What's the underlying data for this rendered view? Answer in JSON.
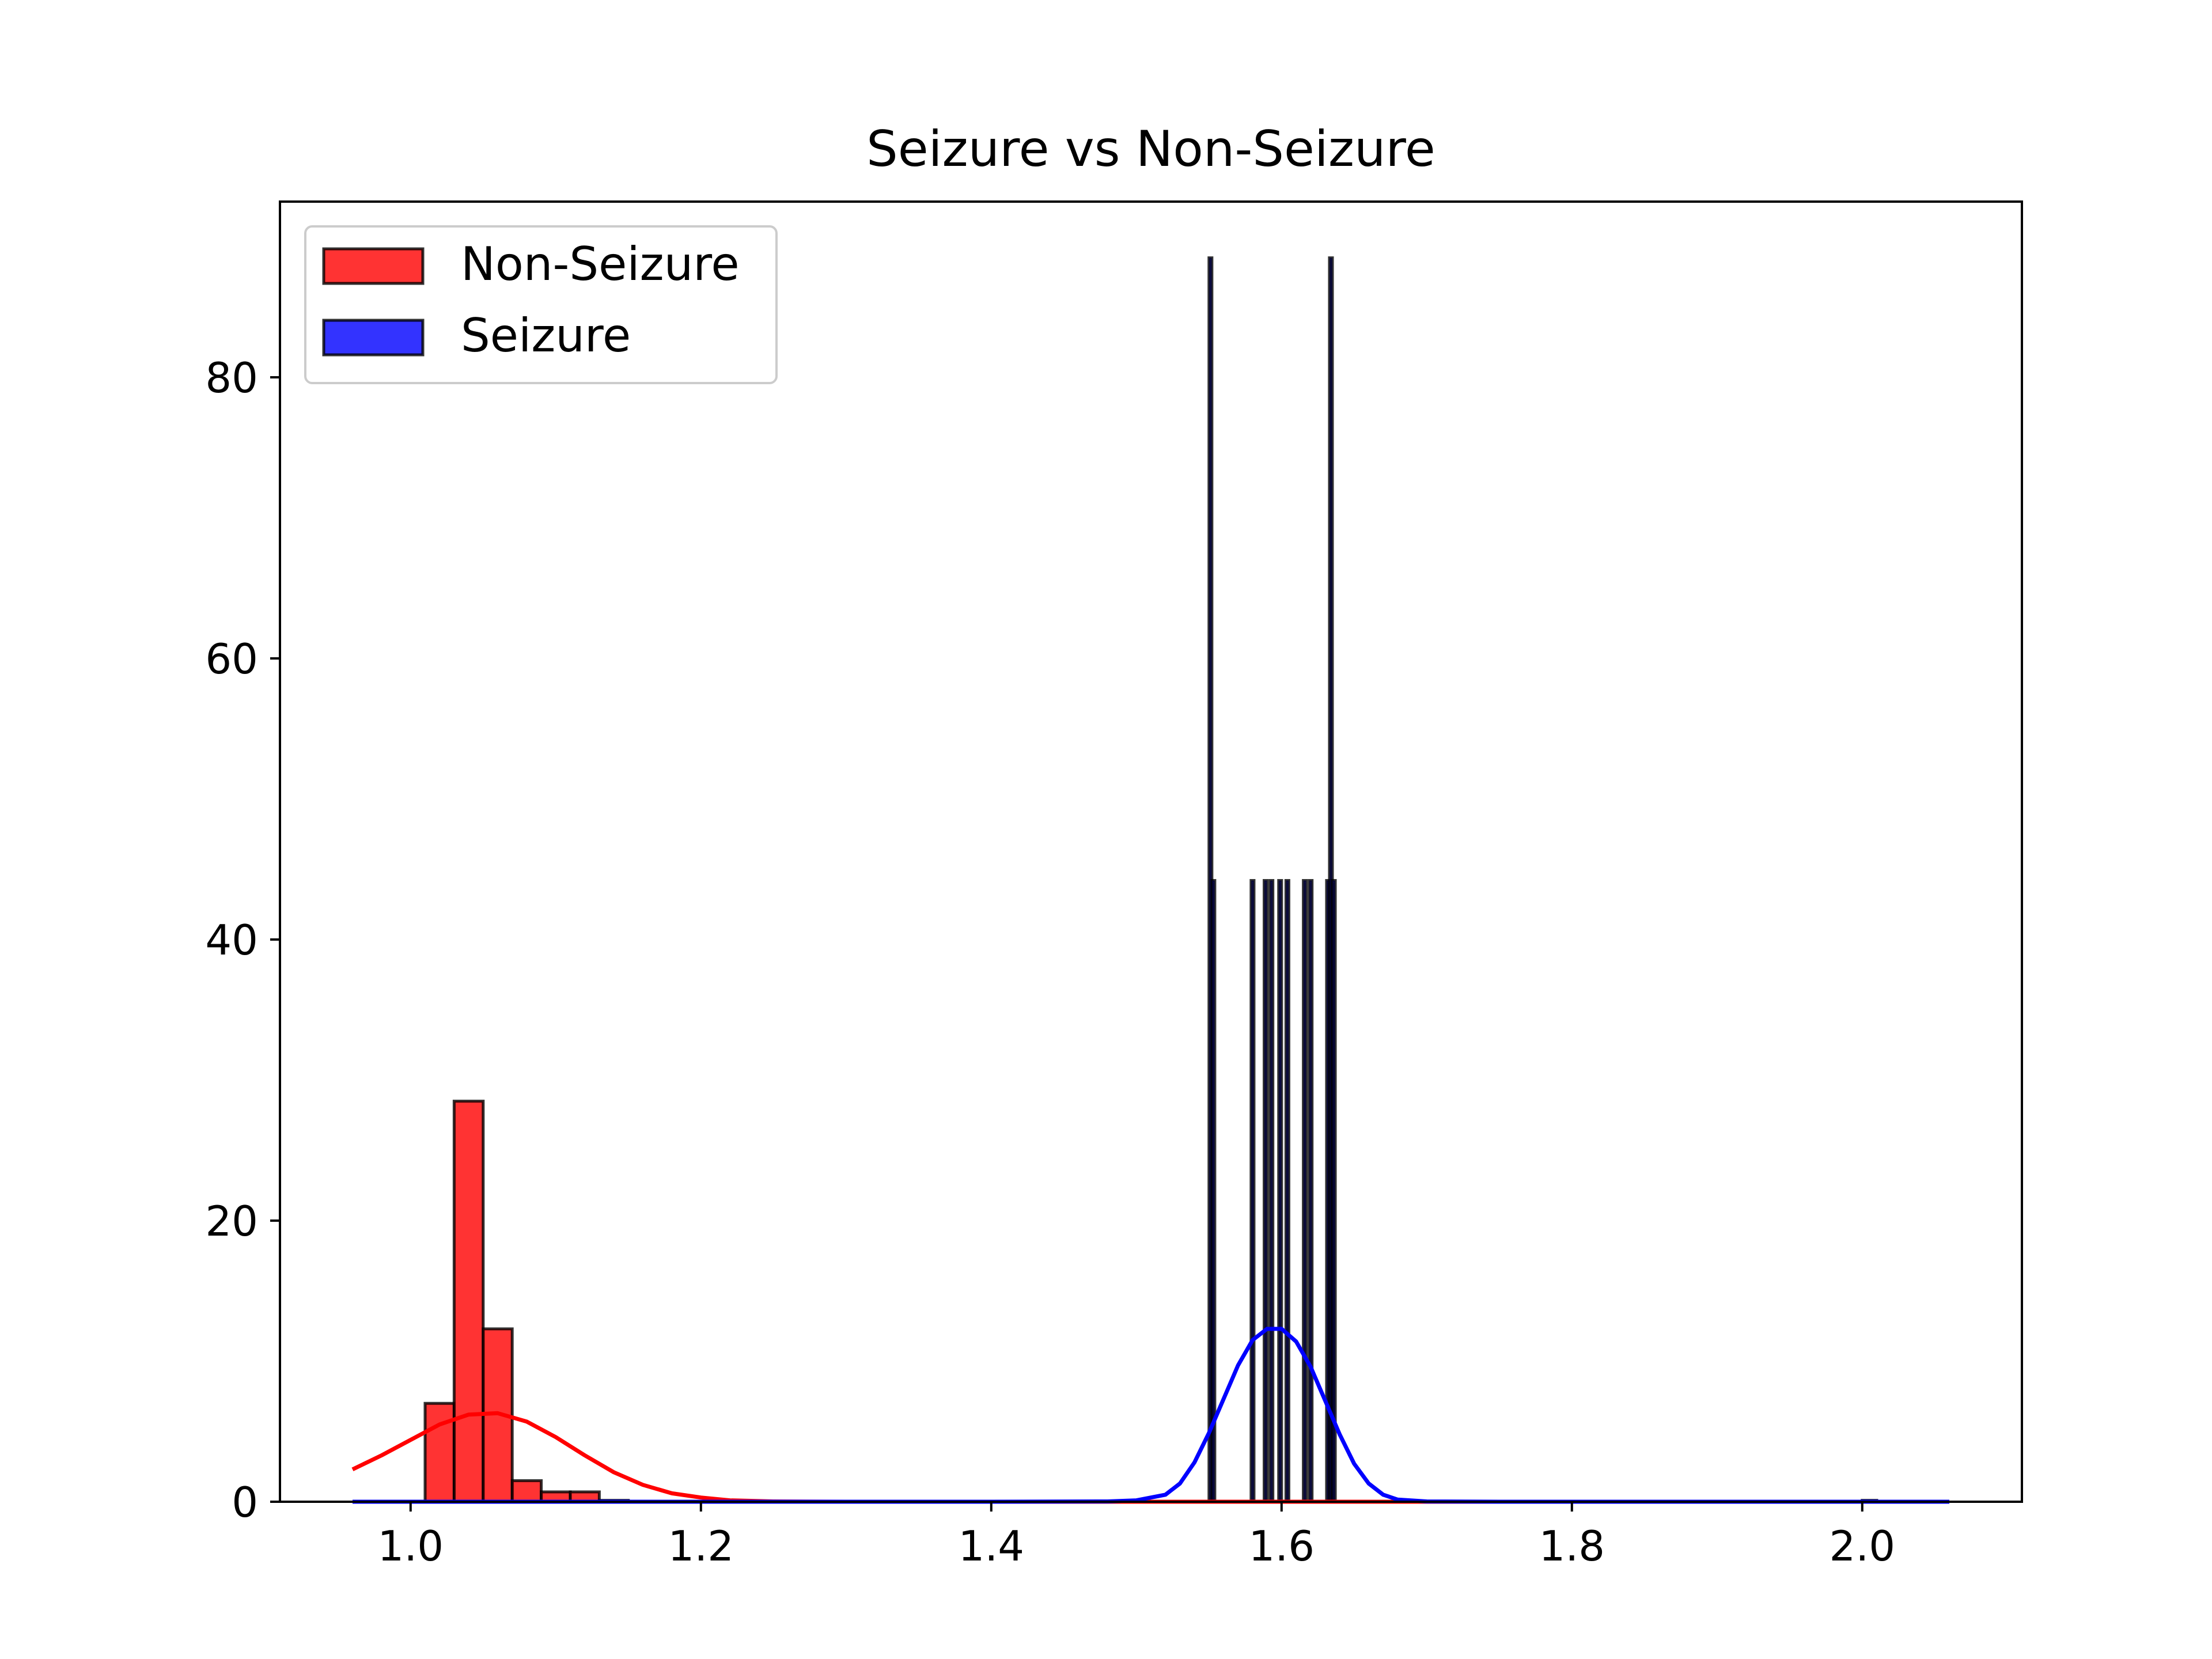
{
  "chart_data": {
    "type": "histogram",
    "title": "Seizure vs Non-Seizure",
    "xlabel": "",
    "ylabel": "",
    "xlim": [
      0.91,
      2.11
    ],
    "ylim": [
      0,
      92.5
    ],
    "x_ticks": [
      1.0,
      1.2,
      1.4,
      1.6,
      1.8,
      2.0
    ],
    "x_tick_labels": [
      "1.0",
      "1.2",
      "1.4",
      "1.6",
      "1.8",
      "2.0"
    ],
    "y_ticks": [
      0,
      20,
      40,
      60,
      80
    ],
    "y_tick_labels": [
      "0",
      "20",
      "40",
      "60",
      "80"
    ],
    "grid": false,
    "legend_position": "top-left",
    "series": [
      {
        "name": "Non-Seizure",
        "color": "#ff0000",
        "histogram_bins": [
          {
            "x0": 1.01,
            "x1": 1.03,
            "count": 7.0
          },
          {
            "x0": 1.03,
            "x1": 1.05,
            "count": 28.5
          },
          {
            "x0": 1.05,
            "x1": 1.07,
            "count": 12.3
          },
          {
            "x0": 1.07,
            "x1": 1.09,
            "count": 1.5
          },
          {
            "x0": 1.09,
            "x1": 1.11,
            "count": 0.7
          },
          {
            "x0": 1.11,
            "x1": 1.13,
            "count": 0.7
          },
          {
            "x0": 1.13,
            "x1": 1.15,
            "count": 0.1
          }
        ],
        "density_curve": [
          [
            0.96,
            2.3
          ],
          [
            0.98,
            3.3
          ],
          [
            1.0,
            4.4
          ],
          [
            1.02,
            5.5
          ],
          [
            1.04,
            6.2
          ],
          [
            1.06,
            6.3
          ],
          [
            1.08,
            5.7
          ],
          [
            1.1,
            4.6
          ],
          [
            1.12,
            3.3
          ],
          [
            1.14,
            2.1
          ],
          [
            1.16,
            1.2
          ],
          [
            1.18,
            0.6
          ],
          [
            1.2,
            0.3
          ],
          [
            1.22,
            0.1
          ],
          [
            1.25,
            0.02
          ],
          [
            1.3,
            0.0
          ],
          [
            1.5,
            0.0
          ],
          [
            1.7,
            0.0
          ],
          [
            2.06,
            0.0
          ]
        ]
      },
      {
        "name": "Seizure",
        "color": "#0000ff",
        "histogram_bins": [
          {
            "x0": 1.55,
            "x1": 1.552,
            "count": 88.5
          },
          {
            "x0": 1.552,
            "x1": 1.554,
            "count": 44.2
          },
          {
            "x0": 1.579,
            "x1": 1.581,
            "count": 44.2
          },
          {
            "x0": 1.588,
            "x1": 1.59,
            "count": 44.2
          },
          {
            "x0": 1.592,
            "x1": 1.594,
            "count": 44.2
          },
          {
            "x0": 1.598,
            "x1": 1.6,
            "count": 44.2
          },
          {
            "x0": 1.603,
            "x1": 1.605,
            "count": 44.2
          },
          {
            "x0": 1.615,
            "x1": 1.617,
            "count": 44.2
          },
          {
            "x0": 1.619,
            "x1": 1.621,
            "count": 44.2
          },
          {
            "x0": 1.631,
            "x1": 1.633,
            "count": 44.2
          },
          {
            "x0": 1.633,
            "x1": 1.635,
            "count": 88.5
          },
          {
            "x0": 1.635,
            "x1": 1.637,
            "count": 44.2
          },
          {
            "x0": 2.0,
            "x1": 2.01,
            "count": 0.1
          }
        ],
        "density_curve": [
          [
            0.96,
            0.0
          ],
          [
            1.4,
            0.0
          ],
          [
            1.48,
            0.02
          ],
          [
            1.5,
            0.1
          ],
          [
            1.52,
            0.5
          ],
          [
            1.53,
            1.3
          ],
          [
            1.54,
            2.8
          ],
          [
            1.55,
            4.9
          ],
          [
            1.56,
            7.3
          ],
          [
            1.57,
            9.7
          ],
          [
            1.58,
            11.5
          ],
          [
            1.59,
            12.3
          ],
          [
            1.6,
            12.3
          ],
          [
            1.61,
            11.4
          ],
          [
            1.62,
            9.6
          ],
          [
            1.63,
            7.2
          ],
          [
            1.64,
            4.8
          ],
          [
            1.65,
            2.7
          ],
          [
            1.66,
            1.3
          ],
          [
            1.67,
            0.5
          ],
          [
            1.68,
            0.15
          ],
          [
            1.7,
            0.02
          ],
          [
            1.75,
            0.0
          ],
          [
            2.06,
            0.0
          ]
        ]
      }
    ]
  }
}
